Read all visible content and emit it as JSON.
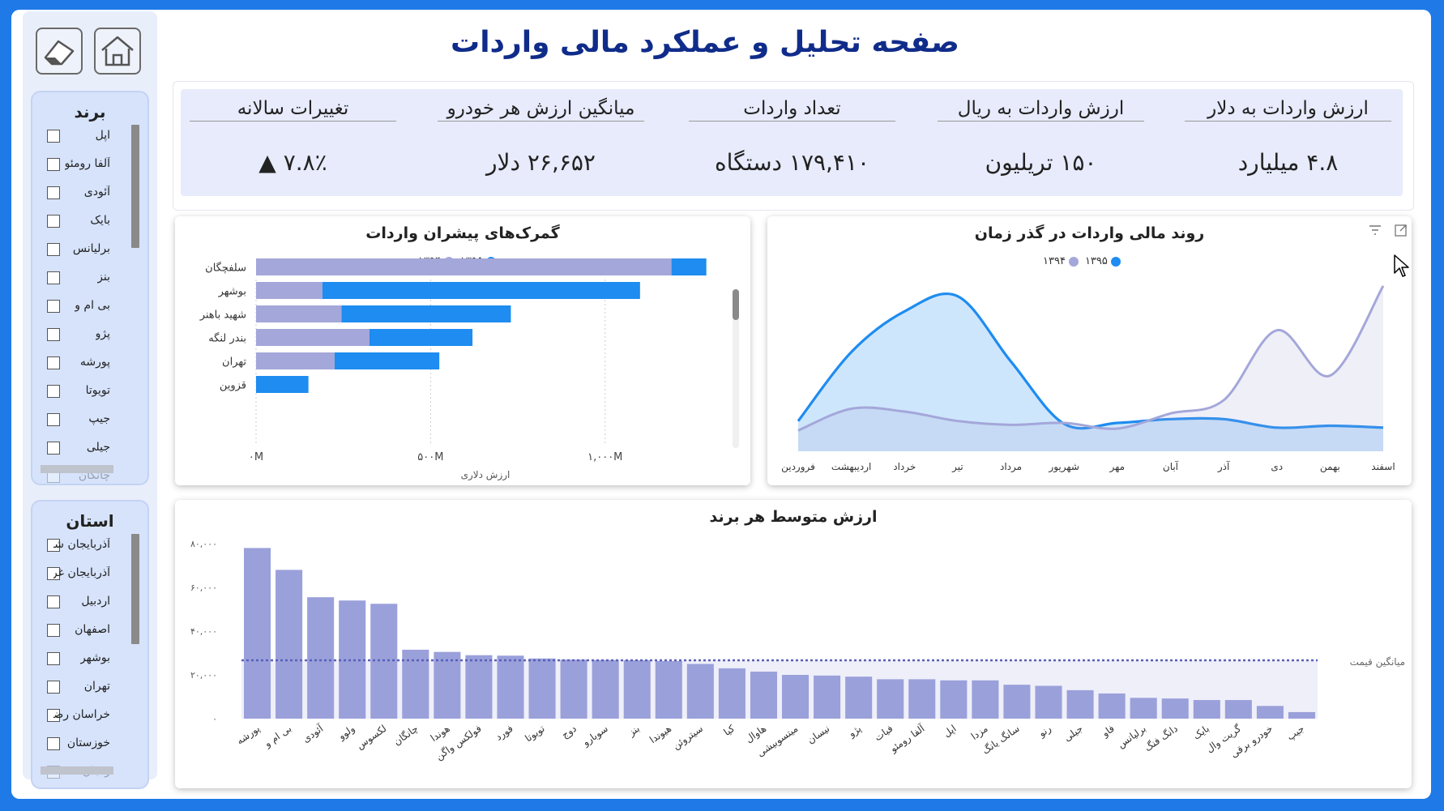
{
  "page_title": "صفحه تحلیل و عملکرد مالی واردات",
  "toolbar": {
    "eraser_icon": "eraser-icon",
    "home_icon": "home-icon"
  },
  "slicer_brand": {
    "title": "برند",
    "items": [
      "اپل",
      "آلفا رومئو",
      "آئودی",
      "بایک",
      "برلیانس",
      "بنز",
      "بی ام و",
      "پژو",
      "پورشه",
      "تویوتا",
      "جیپ",
      "جیلی",
      "چانگان"
    ]
  },
  "slicer_province": {
    "title": "استان",
    "items": [
      "آذربایجان شرقی",
      "آذربایجان غربی",
      "اردبیل",
      "اصفهان",
      "بوشهر",
      "تهران",
      "خراسان رضوی",
      "خوزستان",
      "زنجان"
    ]
  },
  "kpis": [
    {
      "title": "ارزش واردات به دلار",
      "value": "۴.۸ میلیارد"
    },
    {
      "title": "ارزش واردات به ریال",
      "value": "۱۵۰ تریلیون"
    },
    {
      "title": "تعداد واردات",
      "value": "۱۷۹,۴۱۰ دستگاه"
    },
    {
      "title": "میانگین ارزش هر خودرو",
      "value": "۲۶,۶۵۲ دلار"
    },
    {
      "title": "تغییرات سالانه",
      "value": "۷.۸٪",
      "arrow": "▲"
    }
  ],
  "colors": {
    "s1394": "#a4a7d9",
    "s1395": "#1e8cf0",
    "bar": "#9aa0da",
    "title": "#102c8a"
  },
  "chart_data": [
    {
      "type": "area",
      "title": "روند مالی واردات در گذر زمان",
      "legend": [
        "۱۳۹۴",
        "۱۳۹۵"
      ],
      "categories": [
        "فروردین",
        "اردیبهشت",
        "خرداد",
        "تیر",
        "مرداد",
        "شهریور",
        "مهر",
        "آبان",
        "آذر",
        "دی",
        "بهمن",
        "اسفند"
      ],
      "series": [
        {
          "name": "۱۳۹۵",
          "values": [
            32,
            105,
            148,
            164,
            95,
            29,
            30,
            34,
            34,
            25,
            27,
            25
          ]
        },
        {
          "name": "۱۳۹۴",
          "values": [
            22,
            45,
            42,
            32,
            28,
            30,
            24,
            40,
            54,
            128,
            80,
            175
          ]
        }
      ],
      "ylim": [
        0,
        180
      ]
    },
    {
      "type": "bar",
      "orientation": "horizontal",
      "title": "گمرک‌های پیشران واردات",
      "legend": [
        "۱۳۹۴",
        "۱۳۹۵"
      ],
      "categories": [
        "سلفچگان",
        "بوشهر",
        "شهید باهنر",
        "بندر لنگه",
        "تهران",
        "قزوین"
      ],
      "series": [
        {
          "name": "۱۳۹۴",
          "values": [
            1190,
            190,
            245,
            325,
            225,
            0
          ]
        },
        {
          "name": "۱۳۹۵",
          "values": [
            100,
            910,
            485,
            295,
            300,
            150
          ]
        }
      ],
      "xticks": [
        "۰M",
        "۵۰۰M",
        "۱,۰۰۰M"
      ],
      "xlabel": "ارزش دلاری",
      "xlim": [
        0,
        1300
      ]
    },
    {
      "type": "bar",
      "title": "ارزش متوسط هر برند",
      "categories": [
        "پورشه",
        "بی ام و",
        "آئودی",
        "ولوو",
        "لکسوس",
        "چانگان",
        "هوندا",
        "فولکس واگن",
        "فورد",
        "تویوتا",
        "دوج",
        "سوبارو",
        "بنز",
        "هیوندا",
        "سیتروئن",
        "کیا",
        "هاوال",
        "میتسوبیشی",
        "نیسان",
        "پژو",
        "فیات",
        "آلفا رومئو",
        "اپل",
        "مزدا",
        "سانگ یانگ",
        "رنو",
        "جیلی",
        "فاو",
        "برلیانس",
        "دانگ فنگ",
        "بایک",
        "گریت وال",
        "خودرو برقی",
        "جیپ"
      ],
      "values": [
        78000,
        68000,
        55500,
        54000,
        52500,
        31500,
        30500,
        29000,
        28800,
        27500,
        27000,
        26800,
        26700,
        26300,
        25000,
        23000,
        21500,
        20000,
        19700,
        19200,
        18000,
        18000,
        17500,
        17500,
        15500,
        15000,
        13000,
        11500,
        9500,
        9200,
        8500,
        8500,
        5800,
        3000
      ],
      "avg_label": "میانگین قیمت",
      "avg_value": 26652,
      "yticks": [
        "۰",
        "۲۰,۰۰۰",
        "۴۰,۰۰۰",
        "۶۰,۰۰۰",
        "۸۰,۰۰۰"
      ],
      "ylim": [
        0,
        80000
      ]
    }
  ]
}
